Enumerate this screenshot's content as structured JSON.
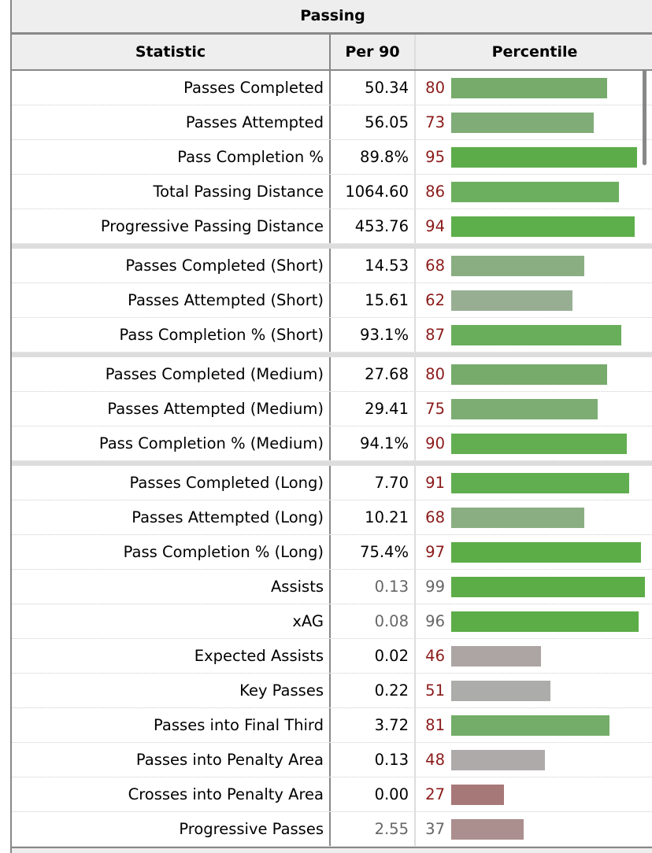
{
  "table": {
    "caption": "Passing",
    "headers": [
      "Statistic",
      "Per 90",
      "Percentile"
    ],
    "groups": [
      [
        {
          "stat": "Passes Completed",
          "per90": "50.34",
          "pct": 80,
          "value_style": "blk",
          "pct_style": "red",
          "color": "#76ab6b"
        },
        {
          "stat": "Passes Attempted",
          "per90": "56.05",
          "pct": 73,
          "value_style": "blk",
          "pct_style": "red",
          "color": "#80ac78"
        },
        {
          "stat": "Pass Completion %",
          "per90": "89.8%",
          "pct": 95,
          "value_style": "blk",
          "pct_style": "red",
          "color": "#5cad4a"
        },
        {
          "stat": "Total Passing Distance",
          "per90": "1064.60",
          "pct": 86,
          "value_style": "blk",
          "pct_style": "red",
          "color": "#6caf5e"
        },
        {
          "stat": "Progressive Passing Distance",
          "per90": "453.76",
          "pct": 94,
          "value_style": "blk",
          "pct_style": "red",
          "color": "#5daf4b"
        }
      ],
      [
        {
          "stat": "Passes Completed (Short)",
          "per90": "14.53",
          "pct": 68,
          "value_style": "blk",
          "pct_style": "red",
          "color": "#8aae82"
        },
        {
          "stat": "Passes Attempted (Short)",
          "per90": "15.61",
          "pct": 62,
          "value_style": "blk",
          "pct_style": "red",
          "color": "#97ae93"
        },
        {
          "stat": "Pass Completion % (Short)",
          "per90": "93.1%",
          "pct": 87,
          "value_style": "blk",
          "pct_style": "red",
          "color": "#69ae5a"
        }
      ],
      [
        {
          "stat": "Passes Completed (Medium)",
          "per90": "27.68",
          "pct": 80,
          "value_style": "blk",
          "pct_style": "red",
          "color": "#76ab6b"
        },
        {
          "stat": "Passes Attempted (Medium)",
          "per90": "29.41",
          "pct": 75,
          "value_style": "blk",
          "pct_style": "red",
          "color": "#7dad73"
        },
        {
          "stat": "Pass Completion % (Medium)",
          "per90": "94.1%",
          "pct": 90,
          "value_style": "blk",
          "pct_style": "red",
          "color": "#62ae51"
        }
      ],
      [
        {
          "stat": "Passes Completed (Long)",
          "per90": "7.70",
          "pct": 91,
          "value_style": "blk",
          "pct_style": "red",
          "color": "#60ae50"
        },
        {
          "stat": "Passes Attempted (Long)",
          "per90": "10.21",
          "pct": 68,
          "value_style": "blk",
          "pct_style": "red",
          "color": "#8aae82"
        },
        {
          "stat": "Pass Completion % (Long)",
          "per90": "75.4%",
          "pct": 97,
          "value_style": "blk",
          "pct_style": "red",
          "color": "#5cad47"
        },
        {
          "stat": "Assists",
          "per90": "0.13",
          "pct": 99,
          "value_style": "gray",
          "pct_style": "gray",
          "color": "#5cad47"
        },
        {
          "stat": "xAG",
          "per90": "0.08",
          "pct": 96,
          "value_style": "gray",
          "pct_style": "gray",
          "color": "#5cad47"
        },
        {
          "stat": "Expected Assists",
          "per90": "0.02",
          "pct": 46,
          "value_style": "blk",
          "pct_style": "red",
          "color": "#ada4a4"
        },
        {
          "stat": "Key Passes",
          "per90": "0.22",
          "pct": 51,
          "value_style": "blk",
          "pct_style": "red",
          "color": "#acacaa"
        },
        {
          "stat": "Passes into Final Third",
          "per90": "3.72",
          "pct": 81,
          "value_style": "blk",
          "pct_style": "red",
          "color": "#74ad69"
        },
        {
          "stat": "Passes into Penalty Area",
          "per90": "0.13",
          "pct": 48,
          "value_style": "blk",
          "pct_style": "red",
          "color": "#aeaaaa"
        },
        {
          "stat": "Crosses into Penalty Area",
          "per90": "0.00",
          "pct": 27,
          "value_style": "blk",
          "pct_style": "red",
          "color": "#a77878"
        },
        {
          "stat": "Progressive Passes",
          "per90": "2.55",
          "pct": 37,
          "value_style": "gray",
          "pct_style": "gray",
          "color": "#ab8e8e"
        }
      ]
    ]
  }
}
